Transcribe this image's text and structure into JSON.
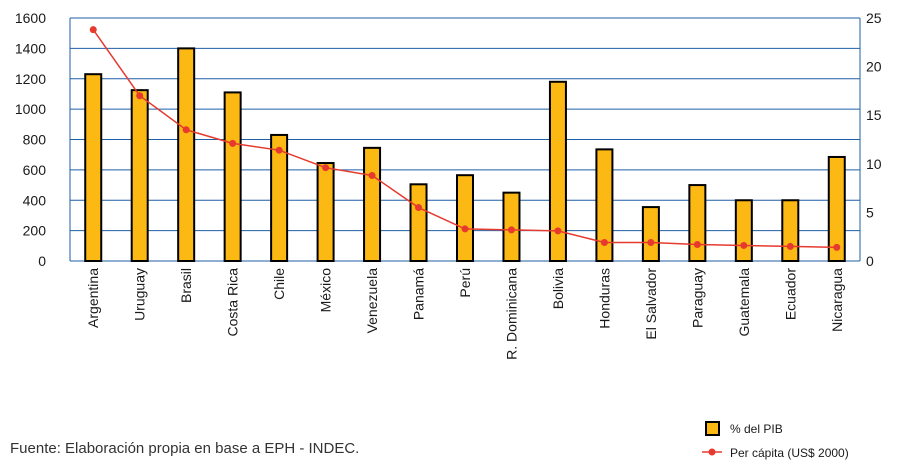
{
  "chart_data": {
    "type": "bar",
    "categories": [
      "Argentina",
      "Uruguay",
      "Brasil",
      "Costa Rica",
      "Chile",
      "México",
      "Venezuela",
      "Panamá",
      "Perú",
      "R. Dominicana",
      "Bolivia",
      "Honduras",
      "El Salvador",
      "Paraguay",
      "Guatemala",
      "Ecuador",
      "Nicaragua"
    ],
    "series": [
      {
        "name": "% del PIB",
        "axis": "left",
        "type": "bar",
        "values": [
          1230,
          1125,
          1400,
          1110,
          830,
          645,
          745,
          505,
          565,
          450,
          1180,
          735,
          355,
          500,
          400,
          400,
          685
        ]
      },
      {
        "name": "Per cápita (US$ 2000)",
        "axis": "right",
        "type": "line",
        "values": [
          23.8,
          17.0,
          13.5,
          12.1,
          11.4,
          9.6,
          8.8,
          5.5,
          3.3,
          3.2,
          3.1,
          1.9,
          1.9,
          1.7,
          1.6,
          1.5,
          1.4
        ]
      }
    ],
    "ylim_left": [
      0,
      1600
    ],
    "yticks_left": [
      0,
      200,
      400,
      600,
      800,
      1000,
      1200,
      1400,
      1600
    ],
    "ylim_right": [
      0,
      25
    ],
    "yticks_right": [
      0,
      5,
      10,
      15,
      20,
      25
    ],
    "grid": "horizontal",
    "legend_position": "bottom-right",
    "colors": {
      "bar_fill": "#FDB913",
      "bar_stroke": "#000000",
      "line": "#E63A2E",
      "grid": "#1F5FA6",
      "frame": "#1F5FA6"
    }
  },
  "footer": {
    "source": "Fuente: Elaboración propia en base a EPH - INDEC."
  }
}
